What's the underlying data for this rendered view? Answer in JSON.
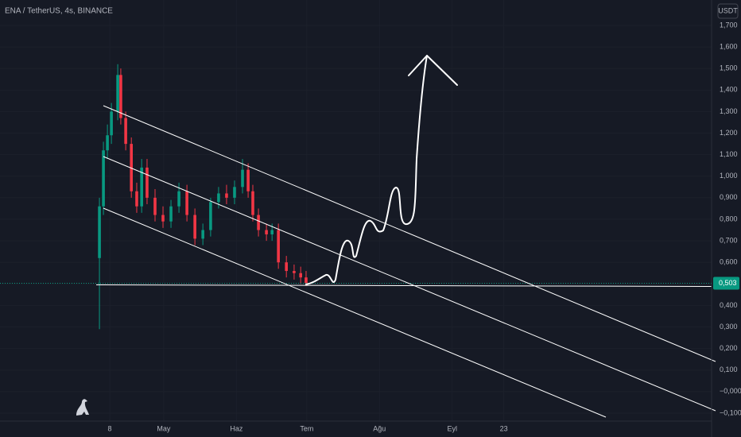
{
  "chart_data": {
    "type": "candlestick",
    "title": "ENA / TetherUS, 4s, BINANCE",
    "currency": "USDT",
    "up_color": "#089981",
    "down_color": "#f23645",
    "x": [
      2.6,
      4.3,
      6,
      7.7,
      10.4,
      11.7,
      13.8,
      16.2,
      18.5,
      20.6,
      22.9,
      26.3,
      29.7,
      33.1,
      36.5,
      39.9,
      43.3,
      46.7,
      50,
      53.4,
      56.8,
      60.2,
      63.6,
      66,
      68,
      70.4,
      73.8,
      76.2,
      78.9,
      82.3,
      85.6,
      88.4,
      90.7
    ],
    "open": [
      0.62,
      0.86,
      1.12,
      1.19,
      1.3,
      1.47,
      1.27,
      1.15,
      0.93,
      0.86,
      1.04,
      0.9,
      0.82,
      0.79,
      0.86,
      0.93,
      0.82,
      0.71,
      0.75,
      0.88,
      0.92,
      0.9,
      0.95,
      1.03,
      0.93,
      0.82,
      0.75,
      0.73,
      0.75,
      0.6,
      0.56,
      0.55,
      0.53
    ],
    "high": [
      0.9,
      1.16,
      1.24,
      1.34,
      1.52,
      1.5,
      1.3,
      1.18,
      0.97,
      1.08,
      1.08,
      0.94,
      0.86,
      0.89,
      0.97,
      0.96,
      0.85,
      0.78,
      0.9,
      0.95,
      0.96,
      0.98,
      1.08,
      1.06,
      0.96,
      0.85,
      0.78,
      0.78,
      0.78,
      0.63,
      0.59,
      0.58,
      0.56
    ],
    "low": [
      0.29,
      0.82,
      1.08,
      1.15,
      1.26,
      1.24,
      1.12,
      0.9,
      0.83,
      0.83,
      0.87,
      0.79,
      0.76,
      0.76,
      0.83,
      0.79,
      0.68,
      0.68,
      0.72,
      0.85,
      0.87,
      0.87,
      0.92,
      0.9,
      0.79,
      0.72,
      0.7,
      0.7,
      0.57,
      0.53,
      0.52,
      0.5,
      0.49
    ],
    "close": [
      0.86,
      1.12,
      1.19,
      1.3,
      1.47,
      1.27,
      1.15,
      0.93,
      0.86,
      1.04,
      0.9,
      0.82,
      0.79,
      0.86,
      0.93,
      0.82,
      0.71,
      0.75,
      0.88,
      0.92,
      0.9,
      0.95,
      1.03,
      0.93,
      0.82,
      0.75,
      0.73,
      0.75,
      0.6,
      0.56,
      0.55,
      0.53,
      0.503
    ],
    "xlim": [
      -39.8,
      263.6
    ],
    "xticks": [
      {
        "value": 7,
        "label": "8"
      },
      {
        "value": 30,
        "label": "May"
      },
      {
        "value": 61,
        "label": "Haz"
      },
      {
        "value": 91,
        "label": "Tem"
      },
      {
        "value": 122,
        "label": "Ağu"
      },
      {
        "value": 153,
        "label": "Eyl"
      },
      {
        "value": 175,
        "label": "23"
      }
    ],
    "ylim": [
      -0.137,
      1.818
    ],
    "yticks": [
      {
        "value": -0.1,
        "label": "−0,100"
      },
      {
        "value": 0,
        "label": "−0,000"
      },
      {
        "value": 0.1,
        "label": "0,100"
      },
      {
        "value": 0.2,
        "label": "0,200"
      },
      {
        "value": 0.3,
        "label": "0,300"
      },
      {
        "value": 0.4,
        "label": "0,400"
      },
      {
        "value": 0.5,
        "label": "0,500"
      },
      {
        "value": 0.6,
        "label": "0,600"
      },
      {
        "value": 0.7,
        "label": "0,700"
      },
      {
        "value": 0.8,
        "label": "0,800"
      },
      {
        "value": 0.9,
        "label": "0,900"
      },
      {
        "value": 1.0,
        "label": "1,000"
      },
      {
        "value": 1.1,
        "label": "1,100"
      },
      {
        "value": 1.2,
        "label": "1,200"
      },
      {
        "value": 1.3,
        "label": "1,300"
      },
      {
        "value": 1.4,
        "label": "1,400"
      },
      {
        "value": 1.5,
        "label": "1,500"
      },
      {
        "value": 1.6,
        "label": "1,600"
      },
      {
        "value": 1.7,
        "label": "1,700"
      }
    ],
    "last_price": {
      "value": 0.503,
      "label": "0,503"
    }
  }
}
